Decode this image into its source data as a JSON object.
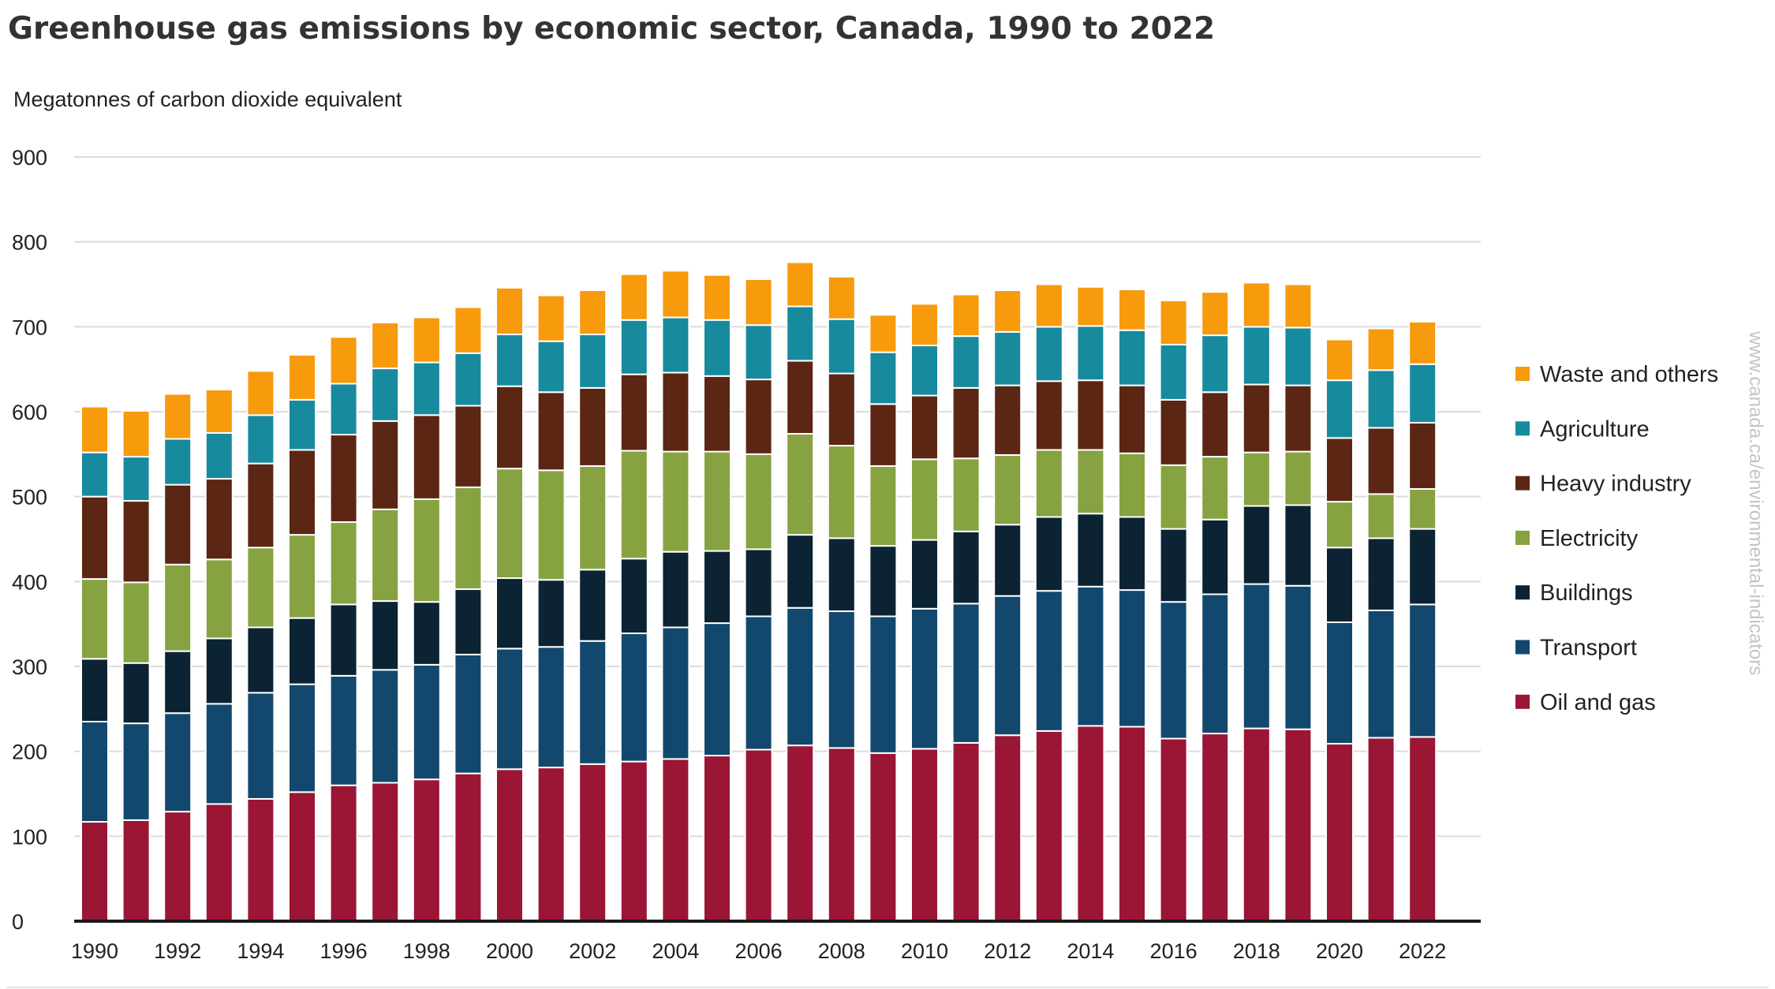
{
  "title": "Greenhouse gas emissions by economic sector, Canada, 1990 to 2022",
  "watermark": "www.canada.ca/environmental-indicators",
  "chart_data": {
    "type": "bar",
    "stacked": true,
    "title": "Greenhouse gas emissions by economic sector, Canada, 1990 to 2022",
    "ylabel": "Megatonnes of carbon dioxide equivalent",
    "xlabel": "",
    "ylim": [
      0,
      900
    ],
    "yticks": [
      0,
      100,
      200,
      300,
      400,
      500,
      600,
      700,
      800,
      900
    ],
    "xtick_labels": [
      "1990",
      "1992",
      "1994",
      "1996",
      "1998",
      "2000",
      "2002",
      "2004",
      "2006",
      "2008",
      "2010",
      "2012",
      "2014",
      "2016",
      "2018",
      "2020",
      "2022"
    ],
    "grid": true,
    "legend_position": "right",
    "categories": [
      "1990",
      "1991",
      "1992",
      "1993",
      "1994",
      "1995",
      "1996",
      "1997",
      "1998",
      "1999",
      "2000",
      "2001",
      "2002",
      "2003",
      "2004",
      "2005",
      "2006",
      "2007",
      "2008",
      "2009",
      "2010",
      "2011",
      "2012",
      "2013",
      "2014",
      "2015",
      "2016",
      "2017",
      "2018",
      "2019",
      "2020",
      "2021",
      "2022"
    ],
    "series": [
      {
        "name": "Oil and gas",
        "color": "#9b1535",
        "values": [
          117,
          119,
          129,
          138,
          144,
          152,
          160,
          163,
          167,
          174,
          179,
          181,
          185,
          188,
          191,
          195,
          202,
          207,
          204,
          198,
          203,
          210,
          219,
          224,
          230,
          229,
          215,
          221,
          227,
          226,
          209,
          216,
          217
        ]
      },
      {
        "name": "Transport",
        "color": "#12486d",
        "values": [
          118,
          114,
          116,
          118,
          125,
          127,
          129,
          133,
          135,
          140,
          142,
          142,
          145,
          151,
          155,
          156,
          157,
          162,
          161,
          161,
          165,
          164,
          164,
          165,
          164,
          161,
          161,
          164,
          170,
          169,
          143,
          150,
          156
        ]
      },
      {
        "name": "Buildings",
        "color": "#0b2333",
        "values": [
          74,
          71,
          73,
          77,
          77,
          78,
          84,
          81,
          74,
          77,
          83,
          79,
          84,
          88,
          89,
          85,
          79,
          86,
          86,
          83,
          81,
          85,
          84,
          87,
          86,
          86,
          86,
          88,
          92,
          95,
          88,
          85,
          89
        ]
      },
      {
        "name": "Electricity",
        "color": "#87a241",
        "values": [
          94,
          95,
          102,
          93,
          94,
          98,
          97,
          108,
          121,
          120,
          129,
          129,
          122,
          127,
          118,
          117,
          112,
          119,
          109,
          94,
          95,
          86,
          82,
          79,
          75,
          75,
          75,
          74,
          63,
          63,
          54,
          52,
          47
        ]
      },
      {
        "name": "Heavy industry",
        "color": "#5b2613",
        "values": [
          97,
          96,
          94,
          95,
          99,
          100,
          103,
          104,
          99,
          96,
          97,
          92,
          92,
          90,
          93,
          89,
          88,
          86,
          85,
          73,
          75,
          83,
          82,
          81,
          82,
          80,
          77,
          76,
          80,
          78,
          75,
          78,
          78
        ]
      },
      {
        "name": "Agriculture",
        "color": "#178a9e",
        "values": [
          52,
          52,
          54,
          54,
          57,
          59,
          60,
          62,
          62,
          62,
          61,
          60,
          63,
          64,
          65,
          66,
          64,
          64,
          64,
          61,
          59,
          61,
          63,
          64,
          64,
          65,
          65,
          67,
          68,
          68,
          68,
          68,
          69
        ]
      },
      {
        "name": "Waste and others",
        "color": "#f79a0c",
        "values": [
          54,
          54,
          53,
          51,
          52,
          53,
          55,
          54,
          53,
          54,
          55,
          54,
          52,
          54,
          55,
          53,
          54,
          52,
          50,
          44,
          49,
          49,
          49,
          50,
          46,
          48,
          52,
          51,
          52,
          51,
          48,
          49,
          50
        ]
      }
    ]
  }
}
